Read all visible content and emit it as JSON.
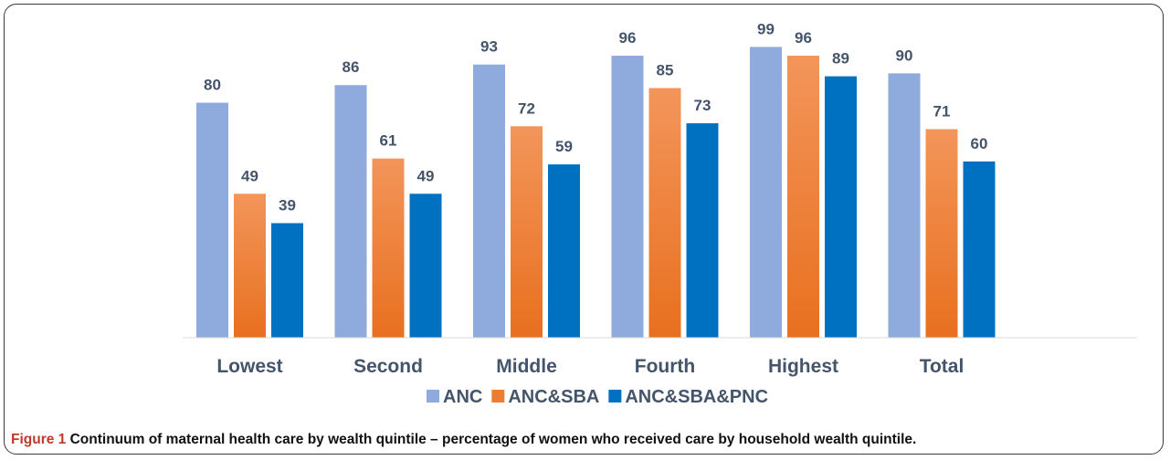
{
  "chart_data": {
    "type": "bar",
    "categories": [
      "Lowest",
      "Second",
      "Middle",
      "Fourth",
      "Highest",
      "Total"
    ],
    "series": [
      {
        "name": "ANC",
        "values": [
          80,
          86,
          93,
          96,
          99,
          90
        ],
        "color": "#8faadc"
      },
      {
        "name": "ANC&SBA",
        "values": [
          49,
          61,
          72,
          85,
          96,
          71
        ],
        "color": "#ed7d31"
      },
      {
        "name": "ANC&SBA&PNC",
        "values": [
          39,
          49,
          59,
          73,
          89,
          60
        ],
        "color": "#0070c0"
      }
    ],
    "title": "",
    "xlabel": "",
    "ylabel": "",
    "ylim": [
      0,
      100
    ],
    "grid": false,
    "legend_position": "bottom",
    "data_labels": true
  },
  "caption": {
    "figure_label": "Figure 1",
    "text": "Continuum of maternal health care by wealth quintile – percentage of women who received care by household wealth quintile."
  }
}
